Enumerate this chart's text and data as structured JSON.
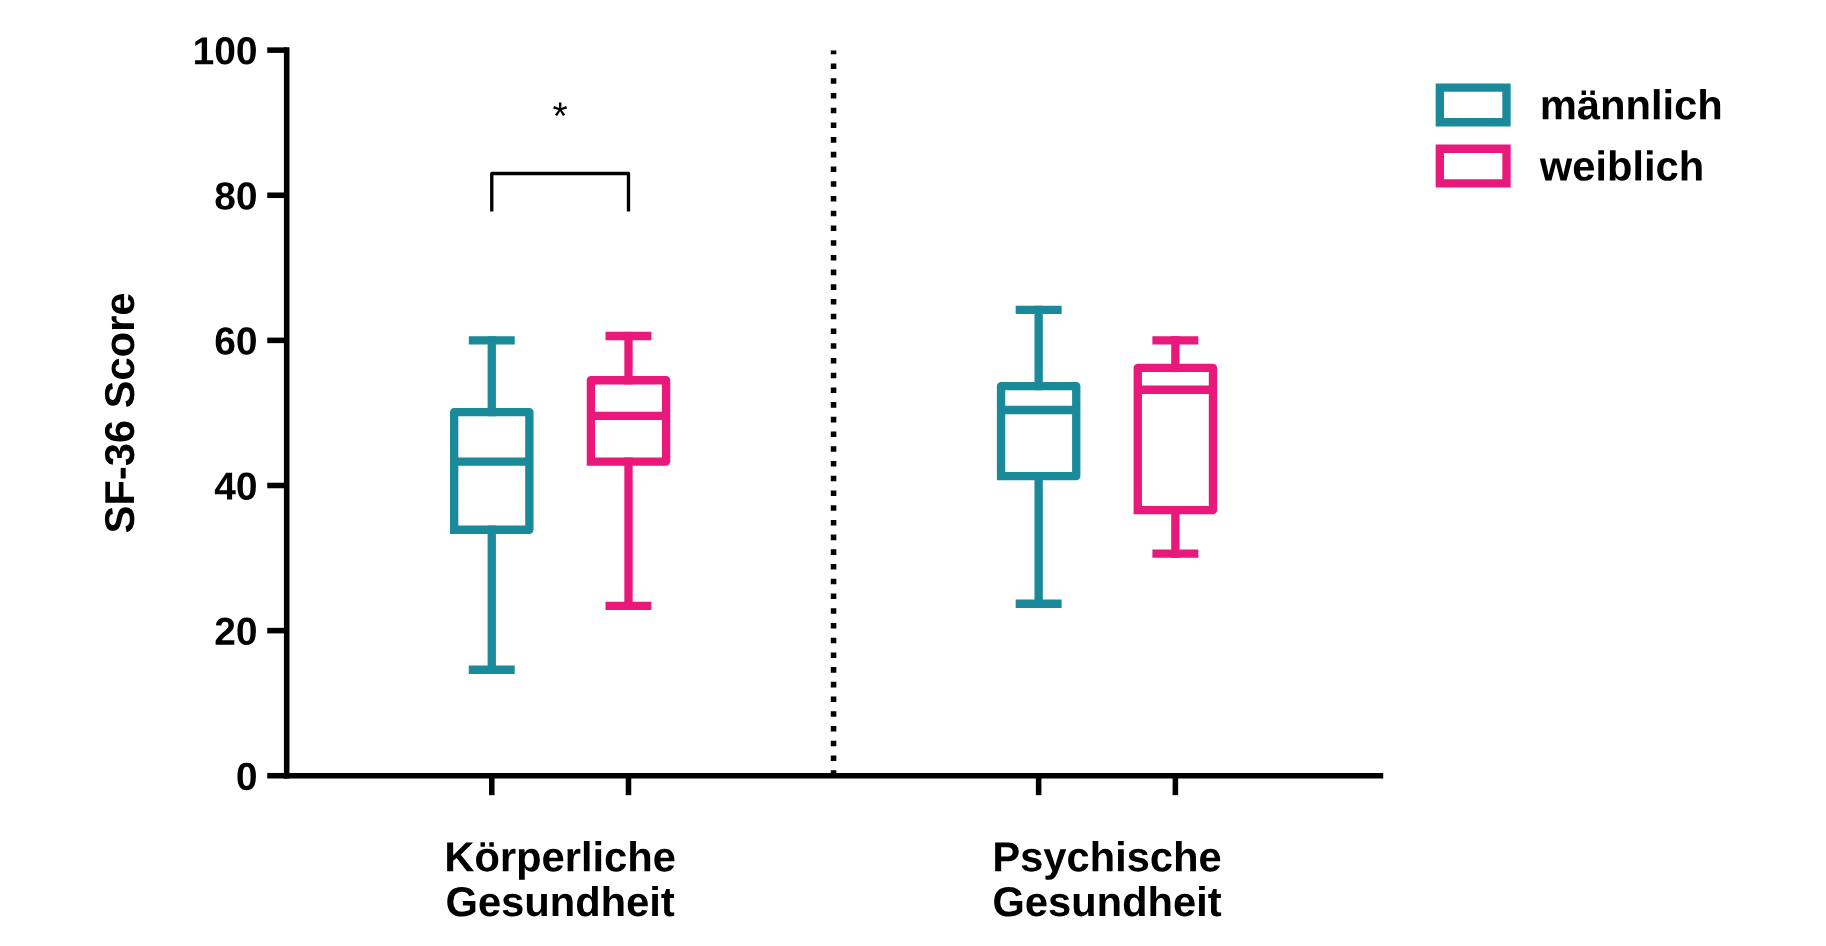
{
  "chart_data": {
    "type": "box",
    "ylabel": "SF-36 Score",
    "categories": [
      "Körperliche\nGesundheit",
      "Psychische\nGesundheit"
    ],
    "series": [
      {
        "name": "männlich",
        "color": "#1a8a9a",
        "boxes": [
          {
            "low": 14.6,
            "q1": 33.9,
            "median": 43.3,
            "q3": 50.1,
            "high": 60
          },
          {
            "low": 23.7,
            "q1": 41.3,
            "median": 50.4,
            "q3": 53.7,
            "high": 64.2
          }
        ]
      },
      {
        "name": "weiblich",
        "color": "#e8197a",
        "boxes": [
          {
            "low": 23.4,
            "q1": 43.3,
            "median": 49.6,
            "q3": 54.5,
            "high": 60.6
          },
          {
            "low": 30.6,
            "q1": 36.6,
            "median": 53.2,
            "q3": 56.2,
            "high": 60
          }
        ]
      }
    ],
    "ylim": [
      0,
      100
    ],
    "yticks": [
      0,
      20,
      40,
      60,
      80,
      100
    ],
    "grid": false,
    "legend": "top right",
    "annotations": [
      "*"
    ]
  }
}
